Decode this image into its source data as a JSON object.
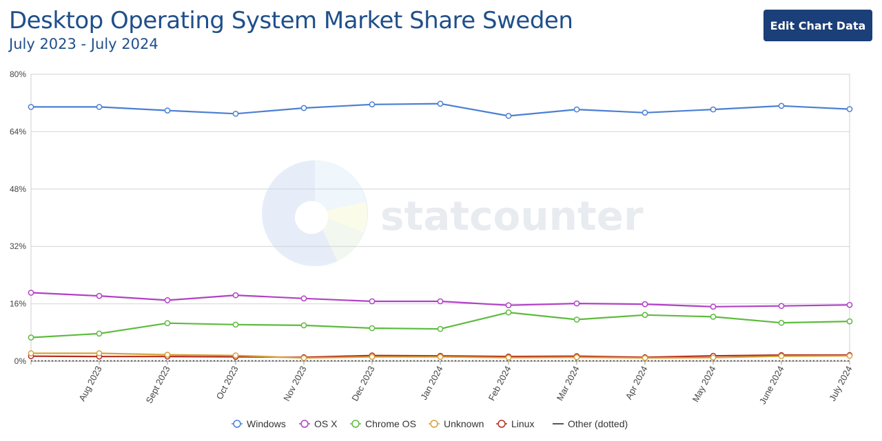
{
  "header": {
    "title": "Desktop Operating System Market Share Sweden",
    "subtitle": "July 2023 - July 2024",
    "edit_button": "Edit Chart Data"
  },
  "watermark": "statcounter",
  "chart_data": {
    "type": "line",
    "categories": [
      "July 2023",
      "Aug 2023",
      "Sept 2023",
      "Oct 2023",
      "Nov 2023",
      "Dec 2023",
      "Jan 2024",
      "Feb 2024",
      "Mar 2024",
      "Apr 2024",
      "May 2024",
      "June 2024",
      "July 2024"
    ],
    "x_tick_labels": [
      "",
      "Aug 2023",
      "Sept 2023",
      "Oct 2023",
      "Nov 2023",
      "Dec 2023",
      "Jan 2024",
      "Feb 2024",
      "Mar 2024",
      "Apr 2024",
      "May 2024",
      "June 2024",
      "July 2024"
    ],
    "ylim": [
      0,
      80
    ],
    "y_ticks": [
      0,
      16,
      32,
      48,
      64,
      80
    ],
    "y_tick_labels": [
      "0%",
      "16%",
      "32%",
      "48%",
      "64%",
      "80%"
    ],
    "grid": true,
    "legend_position": "bottom",
    "series": [
      {
        "name": "Windows",
        "color": "#4a7fd4",
        "values": [
          70.9,
          70.9,
          69.9,
          69.0,
          70.6,
          71.6,
          71.8,
          68.4,
          70.2,
          69.3,
          70.2,
          71.2,
          70.3
        ]
      },
      {
        "name": "OS X",
        "color": "#b140c6",
        "values": [
          19.1,
          18.2,
          17.0,
          18.4,
          17.5,
          16.7,
          16.7,
          15.6,
          16.1,
          15.9,
          15.2,
          15.4,
          15.7
        ]
      },
      {
        "name": "Chrome OS",
        "color": "#5cbb3c",
        "values": [
          6.6,
          7.7,
          10.6,
          10.2,
          10.0,
          9.2,
          9.0,
          13.6,
          11.6,
          12.9,
          12.4,
          10.7,
          11.1
        ]
      },
      {
        "name": "Unknown",
        "color": "#d4a23a",
        "values": [
          2.2,
          2.2,
          1.8,
          1.6,
          0.9,
          1.2,
          1.2,
          1.0,
          1.1,
          0.9,
          1.0,
          1.4,
          1.5
        ]
      },
      {
        "name": "Linux",
        "color": "#b52b1c",
        "values": [
          1.4,
          1.3,
          1.3,
          1.2,
          1.1,
          1.6,
          1.5,
          1.3,
          1.4,
          1.1,
          1.5,
          1.7,
          1.7
        ]
      },
      {
        "name": "Other (dotted)",
        "color": "#555555",
        "dotted": true,
        "values": [
          0.1,
          0.1,
          0.1,
          0.1,
          0.1,
          0.1,
          0.1,
          0.1,
          0.1,
          0.1,
          0.1,
          0.1,
          0.1
        ]
      }
    ]
  }
}
